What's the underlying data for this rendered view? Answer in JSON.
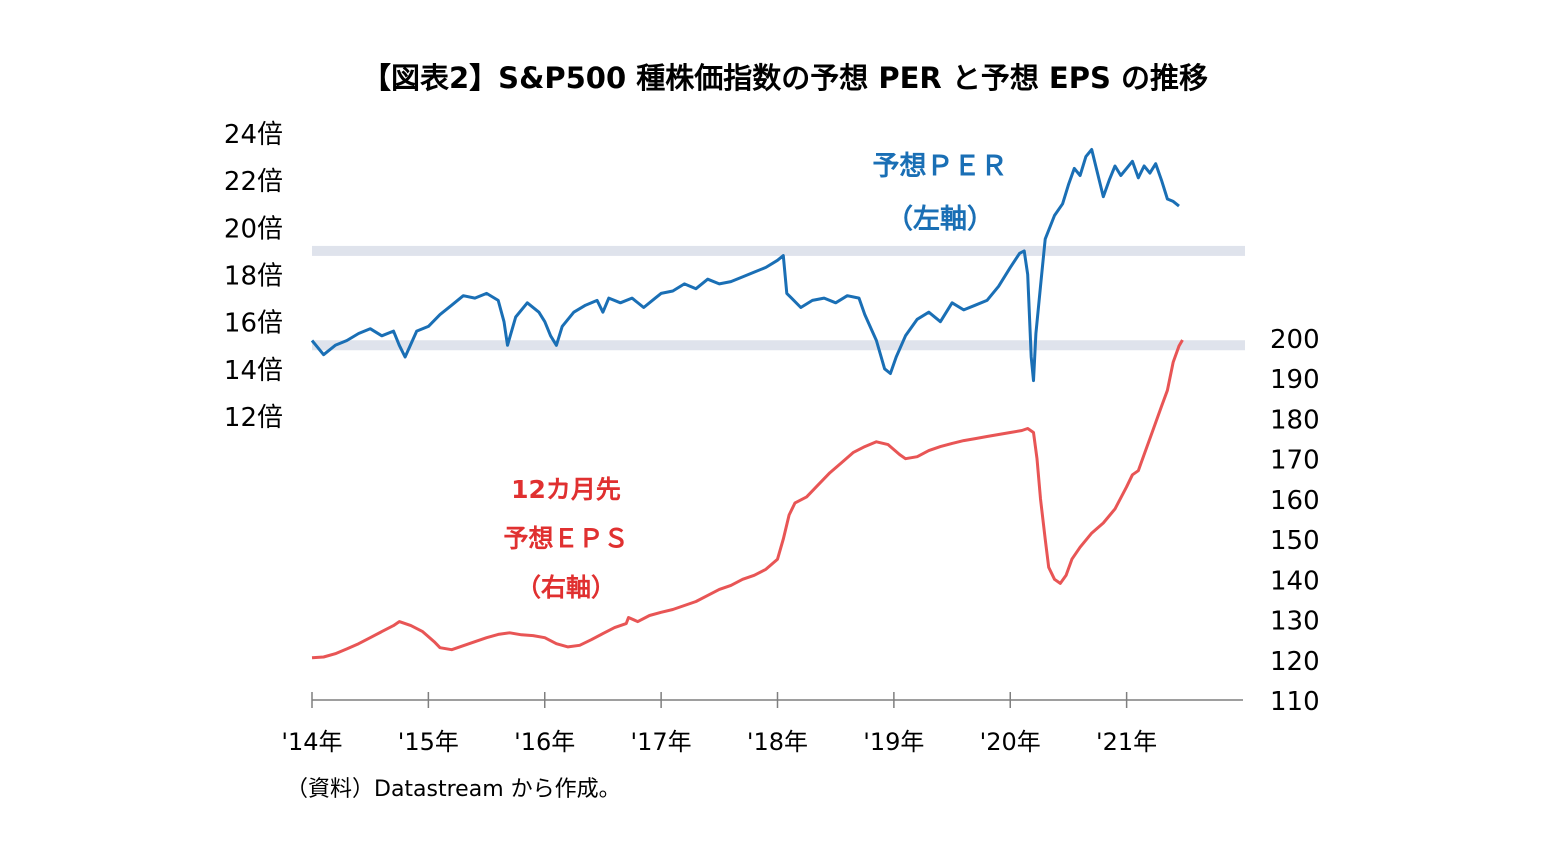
{
  "chart_data": {
    "type": "line",
    "title": "【図表2】S&P500 種株価指数の予想 PER と予想 EPS の推移",
    "source": "（資料）Datastream から作成。",
    "x_ticks": [
      "'14年",
      "'15年",
      "'16年",
      "'17年",
      "'18年",
      "'19年",
      "'20年",
      "'21年"
    ],
    "xlim": [
      2014.0,
      2022.0
    ],
    "left_axis": {
      "ticks": [
        "24倍",
        "22倍",
        "20倍",
        "18倍",
        "16倍",
        "14倍",
        "12倍"
      ],
      "range": [
        12,
        24
      ]
    },
    "right_axis": {
      "ticks": [
        "200",
        "190",
        "180",
        "170",
        "160",
        "150",
        "140",
        "130",
        "120",
        "110"
      ],
      "range": [
        110,
        200
      ]
    },
    "reference_bands": [
      {
        "axis": "left",
        "value": 19.0,
        "color": "#dfe3ec"
      },
      {
        "axis": "left",
        "value": 15.0,
        "color": "#dfe3ec"
      }
    ],
    "series": [
      {
        "name_lines": [
          "予想ＰＥＲ",
          "（左軸）"
        ],
        "axis": "left",
        "color": "#1a6fb5",
        "points": [
          [
            2014.0,
            15.2
          ],
          [
            2014.05,
            14.9
          ],
          [
            2014.1,
            14.6
          ],
          [
            2014.2,
            15.0
          ],
          [
            2014.3,
            15.2
          ],
          [
            2014.4,
            15.5
          ],
          [
            2014.5,
            15.7
          ],
          [
            2014.6,
            15.4
          ],
          [
            2014.7,
            15.6
          ],
          [
            2014.75,
            15.0
          ],
          [
            2014.8,
            14.5
          ],
          [
            2014.9,
            15.6
          ],
          [
            2015.0,
            15.8
          ],
          [
            2015.1,
            16.3
          ],
          [
            2015.2,
            16.7
          ],
          [
            2015.3,
            17.1
          ],
          [
            2015.4,
            17.0
          ],
          [
            2015.5,
            17.2
          ],
          [
            2015.6,
            16.9
          ],
          [
            2015.65,
            16.0
          ],
          [
            2015.68,
            15.0
          ],
          [
            2015.75,
            16.2
          ],
          [
            2015.85,
            16.8
          ],
          [
            2015.95,
            16.4
          ],
          [
            2016.0,
            16.0
          ],
          [
            2016.05,
            15.4
          ],
          [
            2016.1,
            15.0
          ],
          [
            2016.15,
            15.8
          ],
          [
            2016.25,
            16.4
          ],
          [
            2016.35,
            16.7
          ],
          [
            2016.45,
            16.9
          ],
          [
            2016.5,
            16.4
          ],
          [
            2016.55,
            17.0
          ],
          [
            2016.65,
            16.8
          ],
          [
            2016.75,
            17.0
          ],
          [
            2016.85,
            16.6
          ],
          [
            2016.95,
            17.0
          ],
          [
            2017.0,
            17.2
          ],
          [
            2017.1,
            17.3
          ],
          [
            2017.2,
            17.6
          ],
          [
            2017.3,
            17.4
          ],
          [
            2017.4,
            17.8
          ],
          [
            2017.5,
            17.6
          ],
          [
            2017.6,
            17.7
          ],
          [
            2017.7,
            17.9
          ],
          [
            2017.8,
            18.1
          ],
          [
            2017.9,
            18.3
          ],
          [
            2018.0,
            18.6
          ],
          [
            2018.05,
            18.8
          ],
          [
            2018.08,
            17.2
          ],
          [
            2018.12,
            17.0
          ],
          [
            2018.2,
            16.6
          ],
          [
            2018.3,
            16.9
          ],
          [
            2018.4,
            17.0
          ],
          [
            2018.5,
            16.8
          ],
          [
            2018.6,
            17.1
          ],
          [
            2018.7,
            17.0
          ],
          [
            2018.75,
            16.3
          ],
          [
            2018.85,
            15.2
          ],
          [
            2018.92,
            14.0
          ],
          [
            2018.97,
            13.8
          ],
          [
            2019.02,
            14.5
          ],
          [
            2019.1,
            15.4
          ],
          [
            2019.2,
            16.1
          ],
          [
            2019.3,
            16.4
          ],
          [
            2019.4,
            16.0
          ],
          [
            2019.5,
            16.8
          ],
          [
            2019.6,
            16.5
          ],
          [
            2019.7,
            16.7
          ],
          [
            2019.8,
            16.9
          ],
          [
            2019.9,
            17.5
          ],
          [
            2020.0,
            18.3
          ],
          [
            2020.08,
            18.9
          ],
          [
            2020.12,
            19.0
          ],
          [
            2020.15,
            18.0
          ],
          [
            2020.18,
            14.5
          ],
          [
            2020.2,
            13.5
          ],
          [
            2020.22,
            15.5
          ],
          [
            2020.26,
            17.5
          ],
          [
            2020.3,
            19.5
          ],
          [
            2020.38,
            20.5
          ],
          [
            2020.45,
            21.0
          ],
          [
            2020.5,
            21.8
          ],
          [
            2020.55,
            22.5
          ],
          [
            2020.6,
            22.2
          ],
          [
            2020.65,
            23.0
          ],
          [
            2020.7,
            23.3
          ],
          [
            2020.75,
            22.3
          ],
          [
            2020.8,
            21.3
          ],
          [
            2020.85,
            22.0
          ],
          [
            2020.9,
            22.6
          ],
          [
            2020.95,
            22.2
          ],
          [
            2021.0,
            22.5
          ],
          [
            2021.05,
            22.8
          ],
          [
            2021.1,
            22.1
          ],
          [
            2021.15,
            22.6
          ],
          [
            2021.2,
            22.3
          ],
          [
            2021.25,
            22.7
          ],
          [
            2021.3,
            22.0
          ],
          [
            2021.35,
            21.2
          ],
          [
            2021.4,
            21.1
          ],
          [
            2021.45,
            20.9
          ]
        ]
      },
      {
        "name_lines": [
          "12カ月先",
          "予想ＥＰＳ",
          "（右軸）"
        ],
        "axis": "right",
        "color": "#e85555",
        "points": [
          [
            2014.0,
            120.5
          ],
          [
            2014.1,
            120.7
          ],
          [
            2014.2,
            121.5
          ],
          [
            2014.3,
            122.7
          ],
          [
            2014.4,
            124.0
          ],
          [
            2014.5,
            125.5
          ],
          [
            2014.6,
            127.0
          ],
          [
            2014.7,
            128.5
          ],
          [
            2014.75,
            129.5
          ],
          [
            2014.85,
            128.5
          ],
          [
            2014.95,
            127.0
          ],
          [
            2015.05,
            124.5
          ],
          [
            2015.1,
            123.0
          ],
          [
            2015.2,
            122.5
          ],
          [
            2015.3,
            123.5
          ],
          [
            2015.4,
            124.5
          ],
          [
            2015.5,
            125.5
          ],
          [
            2015.6,
            126.3
          ],
          [
            2015.7,
            126.7
          ],
          [
            2015.8,
            126.2
          ],
          [
            2015.9,
            126.0
          ],
          [
            2016.0,
            125.5
          ],
          [
            2016.1,
            124.0
          ],
          [
            2016.2,
            123.2
          ],
          [
            2016.3,
            123.6
          ],
          [
            2016.4,
            125.0
          ],
          [
            2016.5,
            126.5
          ],
          [
            2016.6,
            128.0
          ],
          [
            2016.7,
            129.0
          ],
          [
            2016.72,
            130.5
          ],
          [
            2016.8,
            129.5
          ],
          [
            2016.9,
            131.0
          ],
          [
            2017.0,
            131.8
          ],
          [
            2017.1,
            132.5
          ],
          [
            2017.2,
            133.5
          ],
          [
            2017.3,
            134.5
          ],
          [
            2017.4,
            136.0
          ],
          [
            2017.5,
            137.5
          ],
          [
            2017.6,
            138.5
          ],
          [
            2017.7,
            140.0
          ],
          [
            2017.8,
            141.0
          ],
          [
            2017.9,
            142.5
          ],
          [
            2018.0,
            145.0
          ],
          [
            2018.05,
            150.0
          ],
          [
            2018.1,
            156.0
          ],
          [
            2018.15,
            159.0
          ],
          [
            2018.25,
            160.5
          ],
          [
            2018.35,
            163.5
          ],
          [
            2018.45,
            166.5
          ],
          [
            2018.55,
            169.0
          ],
          [
            2018.65,
            171.5
          ],
          [
            2018.75,
            173.0
          ],
          [
            2018.85,
            174.2
          ],
          [
            2018.95,
            173.5
          ],
          [
            2019.05,
            171.0
          ],
          [
            2019.1,
            170.0
          ],
          [
            2019.2,
            170.5
          ],
          [
            2019.3,
            172.0
          ],
          [
            2019.4,
            173.0
          ],
          [
            2019.5,
            173.8
          ],
          [
            2019.6,
            174.5
          ],
          [
            2019.7,
            175.0
          ],
          [
            2019.8,
            175.5
          ],
          [
            2019.9,
            176.0
          ],
          [
            2020.0,
            176.5
          ],
          [
            2020.1,
            177.0
          ],
          [
            2020.15,
            177.5
          ],
          [
            2020.2,
            176.5
          ],
          [
            2020.23,
            170.0
          ],
          [
            2020.26,
            160.0
          ],
          [
            2020.3,
            150.0
          ],
          [
            2020.33,
            143.0
          ],
          [
            2020.38,
            140.0
          ],
          [
            2020.43,
            139.0
          ],
          [
            2020.48,
            141.0
          ],
          [
            2020.53,
            145.0
          ],
          [
            2020.6,
            148.0
          ],
          [
            2020.7,
            151.5
          ],
          [
            2020.8,
            154.0
          ],
          [
            2020.9,
            157.5
          ],
          [
            2021.0,
            163.0
          ],
          [
            2021.05,
            166.0
          ],
          [
            2021.1,
            167.0
          ],
          [
            2021.15,
            171.0
          ],
          [
            2021.2,
            175.0
          ],
          [
            2021.25,
            179.0
          ],
          [
            2021.3,
            183.0
          ],
          [
            2021.35,
            187.0
          ],
          [
            2021.4,
            194.0
          ],
          [
            2021.45,
            198.0
          ],
          [
            2021.48,
            199.5
          ]
        ]
      }
    ]
  }
}
